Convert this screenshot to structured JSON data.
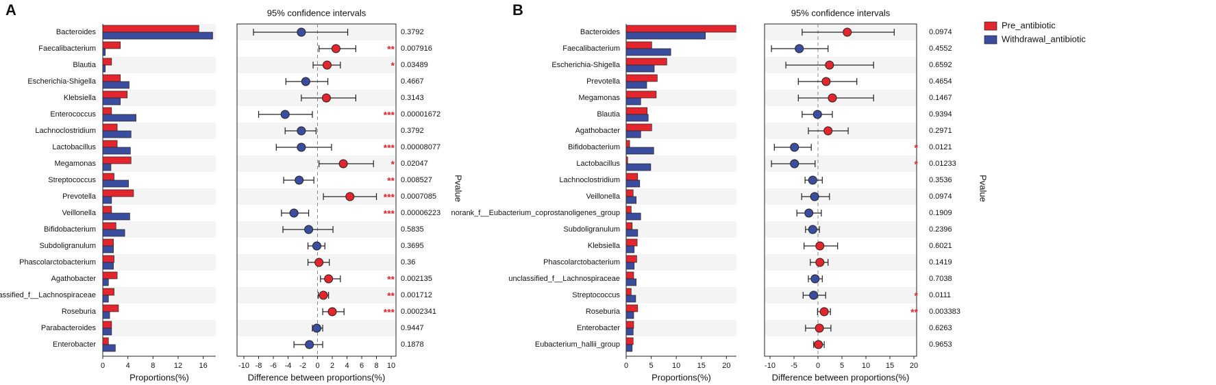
{
  "chart_data": [
    {
      "type": "errorbar",
      "panel_label": "A",
      "categories": [
        "Bacteroides",
        "Faecalibacterium",
        "Blautia",
        "Escherichia-Shigella",
        "Klebsiella",
        "Enterococcus",
        "Lachnoclostridium",
        "Lactobacillus",
        "Megamonas",
        "Streptococcus",
        "Prevotella",
        "Veillonella",
        "Bifidobacterium",
        "Subdoligranulum",
        "Phascolarctobacterium",
        "Agathobacter",
        "unclassified_f__Lachnospiraceae",
        "Roseburia",
        "Parabacteroides",
        "Enterobacter"
      ],
      "series": [
        {
          "color": "#e3262e",
          "values": [
            15.3,
            2.8,
            1.4,
            2.8,
            3.9,
            1.4,
            2.3,
            2.3,
            4.5,
            1.8,
            4.9,
            1.4,
            2.1,
            1.7,
            1.8,
            2.3,
            1.8,
            2.5,
            1.4,
            0.9
          ]
        },
        {
          "color": "#3b4d9e",
          "values": [
            17.5,
            0.4,
            0.4,
            4.2,
            2.8,
            5.3,
            4.5,
            4.4,
            1.3,
            4.1,
            1.4,
            4.3,
            3.5,
            1.7,
            1.7,
            0.9,
            0.9,
            1.1,
            1.4,
            2.0
          ]
        }
      ],
      "xlabel": "Proportions(%)",
      "xlim": [
        0,
        18
      ],
      "xticks": [
        0,
        4,
        8,
        12,
        16
      ],
      "ci_title": "95% confidence intervals",
      "diff_xlabel": "Difference between proportions(%)",
      "diff_xlim": [
        -10,
        10
      ],
      "diff_xticks": [
        -10,
        -8,
        -6,
        -4,
        -2,
        0,
        2,
        4,
        6,
        8,
        10
      ],
      "differences": [
        -2.2,
        2.5,
        1.3,
        -1.6,
        1.2,
        -4.4,
        -2.2,
        -2.2,
        3.5,
        -2.5,
        4.4,
        -3.2,
        -1.2,
        -0.1,
        0.2,
        1.5,
        0.8,
        2.0,
        -0.1,
        -1.1
      ],
      "ci_lower": [
        -8.7,
        0.2,
        -0.6,
        -4.3,
        -2.2,
        -8.0,
        -4.4,
        -5.6,
        0.2,
        -4.6,
        0.8,
        -4.9,
        -4.7,
        -1.3,
        -1.3,
        0.4,
        0.1,
        0.7,
        -0.7,
        -3.2
      ],
      "ci_upper": [
        4.1,
        5.2,
        3.1,
        1.4,
        5.2,
        -0.7,
        -0.2,
        1.9,
        7.6,
        -0.5,
        8.0,
        -1.2,
        2.1,
        1.0,
        1.6,
        3.1,
        1.5,
        3.6,
        0.7,
        0.7
      ],
      "pvalues": [
        0.3792,
        0.007916,
        0.03489,
        0.4667,
        0.3143,
        1.672e-05,
        0.3792,
        8.077e-05,
        0.02047,
        0.008527,
        0.0007085,
        6.223e-05,
        0.5835,
        0.3695,
        0.36,
        0.002135,
        0.001712,
        0.0002341,
        0.9447,
        0.1878
      ],
      "significance": [
        null,
        "**",
        "*",
        null,
        null,
        "***",
        null,
        "***",
        "*",
        "**",
        "***",
        "***",
        null,
        null,
        null,
        "**",
        "**",
        "***",
        null,
        null
      ],
      "pvalue_label": "Pvalue"
    },
    {
      "type": "errorbar",
      "panel_label": "B",
      "categories": [
        "Bacteroides",
        "Faecalibacterium",
        "Escherichia-Shigella",
        "Prevotella",
        "Megamonas",
        "Blautia",
        "Agathobacter",
        "Bifidobacterium",
        "Lactobacillus",
        "Lachnoclostridium",
        "Veillonella",
        "norank_f__Eubacterium_coprostanoligenes_group",
        "Subdoligranulum",
        "Klebsiella",
        "Phascolarctobacterium",
        "unclassified_f__Lachnospiraceae",
        "Streptococcus",
        "Roseburia",
        "Enterobacter",
        "Eubacterium_hallii_group"
      ],
      "series": [
        {
          "name": "Pre_antibiotic",
          "color": "#e3262e",
          "values": [
            21.9,
            5.1,
            8.1,
            6.2,
            6.0,
            4.2,
            5.1,
            0.7,
            0.3,
            2.3,
            1.4,
            1.0,
            1.2,
            2.2,
            2.1,
            1.5,
            1.0,
            2.3,
            1.5,
            1.4
          ]
        },
        {
          "name": "Withdrawal_antibiotic",
          "color": "#3b4d9e",
          "values": [
            15.8,
            8.9,
            5.6,
            4.1,
            2.9,
            4.4,
            2.9,
            5.5,
            4.9,
            2.7,
            2.0,
            2.9,
            2.3,
            1.6,
            1.6,
            2.0,
            1.9,
            1.5,
            1.4,
            1.2
          ]
        }
      ],
      "xlabel": "Proportions(%)",
      "xlim": [
        0,
        22
      ],
      "xticks": [
        0,
        5,
        10,
        15,
        20
      ],
      "ci_title": "95% confidence intervals",
      "diff_xlabel": "Difference between proportions(%)",
      "diff_xlim": [
        -10,
        20
      ],
      "diff_xticks": [
        -10,
        -5,
        0,
        5,
        10,
        15,
        20
      ],
      "differences": [
        6.1,
        -3.9,
        2.4,
        1.7,
        3.0,
        -0.1,
        2.1,
        -4.9,
        -4.9,
        -1.1,
        -0.7,
        -1.9,
        -1.1,
        0.4,
        0.4,
        -0.6,
        -0.9,
        1.3,
        0.3,
        0.1
      ],
      "ci_lower": [
        -3.3,
        -9.7,
        -6.7,
        -4.1,
        -4.1,
        -3.3,
        -2.0,
        -9.1,
        -9.7,
        -2.7,
        -3.4,
        -4.4,
        -2.6,
        -2.9,
        -1.6,
        -2.0,
        -3.1,
        -0.1,
        -2.6,
        -0.9
      ],
      "ci_upper": [
        15.9,
        2.1,
        11.6,
        8.1,
        11.6,
        3.0,
        6.3,
        -1.4,
        -0.6,
        0.9,
        2.4,
        0.7,
        0.3,
        4.1,
        2.1,
        0.9,
        1.6,
        2.6,
        2.7,
        1.3
      ],
      "pvalues": [
        0.0974,
        0.4552,
        0.6592,
        0.4654,
        0.1467,
        0.9394,
        0.2971,
        0.0121,
        0.01233,
        0.3536,
        0.0974,
        0.1909,
        0.2396,
        0.6021,
        0.1419,
        0.7038,
        0.0111,
        0.003383,
        0.6263,
        0.9653
      ],
      "significance": [
        null,
        null,
        null,
        null,
        null,
        null,
        null,
        "*",
        "*",
        null,
        null,
        null,
        null,
        null,
        null,
        null,
        "*",
        "**",
        null,
        null
      ],
      "pvalue_label": "Pvalue"
    }
  ]
}
